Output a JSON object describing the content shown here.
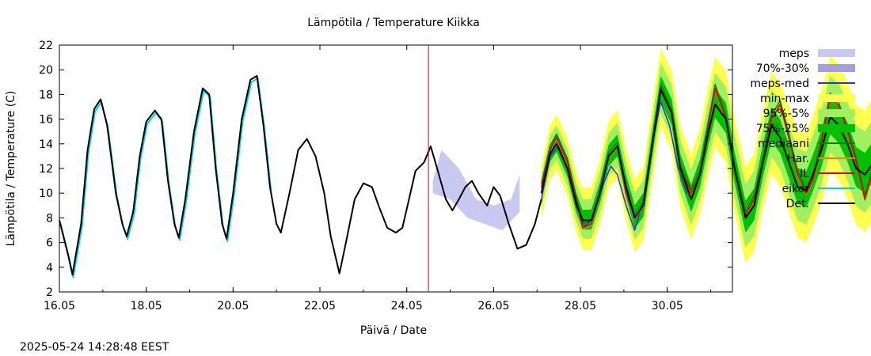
{
  "chart_data": {
    "type": "line",
    "title": "Lämpötila / Temperature   Kiikka",
    "xlabel": "Päivä / Date",
    "ylabel": "Lämpötila / Temperature (C)",
    "footer": "2025-05-24 14:28:48 EEST",
    "xlim": [
      "2025-05-16 00:00",
      "2025-05-31 12:00"
    ],
    "ylim": [
      2,
      22
    ],
    "yticks": [
      2,
      4,
      6,
      8,
      10,
      12,
      14,
      16,
      18,
      20,
      22
    ],
    "xticks": [
      "16.05",
      "18.05",
      "20.05",
      "22.05",
      "24.05",
      "26.05",
      "28.05",
      "30.05"
    ],
    "forecast_start": "2025-05-24 12:00",
    "legend_position": "right",
    "legend": [
      {
        "label": "meps",
        "color": "#c8c8f0",
        "style": "box"
      },
      {
        "label": "70%-30%",
        "color": "#a0a0dc",
        "style": "box"
      },
      {
        "label": "meps-med",
        "color": "#3030d0",
        "style": "line"
      },
      {
        "label": "min-max",
        "color": "#ffff50",
        "style": "box"
      },
      {
        "label": "95%-5%",
        "color": "#a0f060",
        "style": "box"
      },
      {
        "label": "75%-25%",
        "color": "#00c000",
        "style": "box"
      },
      {
        "label": "mediaani",
        "color": "#008000",
        "style": "line"
      },
      {
        "label": "Har.",
        "color": "#ff8000",
        "style": "line"
      },
      {
        "label": "IL",
        "color": "#e00000",
        "style": "line"
      },
      {
        "label": "eikor",
        "color": "#00d0e0",
        "style": "line"
      },
      {
        "label": "Det.",
        "color": "#000000",
        "style": "line"
      }
    ],
    "observed": [
      [
        16.0,
        7.8
      ],
      [
        16.2,
        5.0
      ],
      [
        16.3,
        3.4
      ],
      [
        16.5,
        7.5
      ],
      [
        16.65,
        13.5
      ],
      [
        16.8,
        16.8
      ],
      [
        16.95,
        17.6
      ],
      [
        17.1,
        15.5
      ],
      [
        17.3,
        10.0
      ],
      [
        17.45,
        7.5
      ],
      [
        17.55,
        6.5
      ],
      [
        17.7,
        8.5
      ],
      [
        17.85,
        13.0
      ],
      [
        18.0,
        15.8
      ],
      [
        18.2,
        16.7
      ],
      [
        18.35,
        16.0
      ],
      [
        18.5,
        11.0
      ],
      [
        18.65,
        7.5
      ],
      [
        18.75,
        6.4
      ],
      [
        18.9,
        9.5
      ],
      [
        19.1,
        15.0
      ],
      [
        19.3,
        18.5
      ],
      [
        19.45,
        18.0
      ],
      [
        19.6,
        12.0
      ],
      [
        19.75,
        7.5
      ],
      [
        19.85,
        6.3
      ],
      [
        20.0,
        10.0
      ],
      [
        20.2,
        16.0
      ],
      [
        20.4,
        19.2
      ],
      [
        20.55,
        19.5
      ],
      [
        20.7,
        15.5
      ],
      [
        20.85,
        10.5
      ],
      [
        21.0,
        7.5
      ],
      [
        21.1,
        6.8
      ],
      [
        21.3,
        10.0
      ],
      [
        21.5,
        13.5
      ],
      [
        21.7,
        14.4
      ],
      [
        21.9,
        13.0
      ],
      [
        22.1,
        10.0
      ],
      [
        22.25,
        6.5
      ],
      [
        22.45,
        3.5
      ],
      [
        22.6,
        6.0
      ],
      [
        22.8,
        9.5
      ],
      [
        23.0,
        10.8
      ],
      [
        23.2,
        10.5
      ],
      [
        23.35,
        9.0
      ],
      [
        23.55,
        7.2
      ],
      [
        23.75,
        6.8
      ],
      [
        23.9,
        7.2
      ],
      [
        24.05,
        9.5
      ],
      [
        24.2,
        11.8
      ],
      [
        24.4,
        12.5
      ],
      [
        24.55,
        13.8
      ],
      [
        24.7,
        12.0
      ],
      [
        24.9,
        9.5
      ],
      [
        25.05,
        8.6
      ],
      [
        25.2,
        9.5
      ],
      [
        25.35,
        10.5
      ],
      [
        25.5,
        11.0
      ],
      [
        25.65,
        10.0
      ],
      [
        25.85,
        9.0
      ],
      [
        26.0,
        10.5
      ],
      [
        26.15,
        9.8
      ],
      [
        26.35,
        7.5
      ],
      [
        26.55,
        5.5
      ],
      [
        26.75,
        5.8
      ],
      [
        26.95,
        7.5
      ],
      [
        27.1,
        9.5
      ]
    ],
    "x_axis_note": "x values are day numbers in May 2025 (16 = 16.05 00:00)",
    "series": [
      {
        "name": "meps-med",
        "values": [
          [
            27.1,
            9.5
          ],
          [
            27.3,
            13.0
          ],
          [
            27.5,
            13.8
          ],
          [
            27.7,
            12.0
          ],
          [
            27.9,
            9.0
          ],
          [
            28.1,
            7.3
          ],
          [
            28.3,
            8.0
          ],
          [
            28.5,
            10.5
          ],
          [
            28.7,
            12.2
          ],
          [
            28.85,
            11.5
          ],
          [
            29.05,
            9.0
          ],
          [
            29.25,
            7.0
          ],
          [
            29.45,
            9.5
          ],
          [
            29.65,
            14.0
          ],
          [
            29.85,
            17.4
          ],
          [
            30.05,
            15.5
          ],
          [
            30.25,
            12.0
          ],
          [
            30.45,
            10.0
          ]
        ]
      },
      {
        "name": "IL",
        "values": [
          [
            27.1,
            10.5
          ],
          [
            27.3,
            13.5
          ],
          [
            27.45,
            14.5
          ],
          [
            27.7,
            12.5
          ],
          [
            27.9,
            9.5
          ],
          [
            28.05,
            7.2
          ],
          [
            28.25,
            7.5
          ],
          [
            28.45,
            10.0
          ],
          [
            28.65,
            13.0
          ],
          [
            28.85,
            13.8
          ],
          [
            29.05,
            10.0
          ],
          [
            29.25,
            8.0
          ],
          [
            29.45,
            9.0
          ],
          [
            29.7,
            15.0
          ],
          [
            29.85,
            18.5
          ],
          [
            30.1,
            16.5
          ],
          [
            30.3,
            12.0
          ],
          [
            30.55,
            10.0
          ],
          [
            30.75,
            11.5
          ],
          [
            30.95,
            15.5
          ],
          [
            31.1,
            18.5
          ],
          [
            31.35,
            16.0
          ],
          [
            31.55,
            12.0
          ],
          [
            31.8,
            8.2
          ],
          [
            32.0,
            9.5
          ],
          [
            32.2,
            12.5
          ],
          [
            32.4,
            16.0
          ],
          [
            32.6,
            17.2
          ],
          [
            32.8,
            14.5
          ],
          [
            33.0,
            11.5
          ],
          [
            33.2,
            10.0
          ],
          [
            33.35,
            11.0
          ],
          [
            33.55,
            14.0
          ],
          [
            33.75,
            17.8
          ],
          [
            33.95,
            17.0
          ],
          [
            34.15,
            15.0
          ],
          [
            34.35,
            12.5
          ],
          [
            34.55,
            9.5
          ],
          [
            34.75,
            12.0
          ],
          [
            34.95,
            14.5
          ],
          [
            35.15,
            18.3
          ],
          [
            35.35,
            17.0
          ],
          [
            35.55,
            14.0
          ]
        ]
      },
      {
        "name": "Det.",
        "values": [
          [
            27.1,
            10.0
          ],
          [
            27.3,
            13.2
          ],
          [
            27.45,
            14.0
          ],
          [
            27.7,
            12.0
          ],
          [
            27.9,
            9.2
          ],
          [
            28.05,
            7.8
          ],
          [
            28.25,
            7.8
          ],
          [
            28.45,
            10.0
          ],
          [
            28.65,
            13.0
          ],
          [
            28.85,
            13.8
          ],
          [
            29.05,
            10.5
          ],
          [
            29.25,
            8.0
          ],
          [
            29.45,
            9.0
          ],
          [
            29.7,
            15.0
          ],
          [
            29.85,
            18.4
          ],
          [
            30.1,
            16.5
          ],
          [
            30.3,
            12.0
          ],
          [
            30.55,
            9.5
          ],
          [
            30.75,
            11.5
          ],
          [
            30.95,
            15.0
          ],
          [
            31.1,
            17.2
          ],
          [
            31.35,
            16.0
          ],
          [
            31.55,
            12.0
          ],
          [
            31.8,
            8.0
          ],
          [
            32.0,
            9.0
          ],
          [
            32.2,
            12.5
          ],
          [
            32.4,
            15.5
          ],
          [
            32.6,
            14.5
          ],
          [
            32.8,
            12.5
          ],
          [
            33.0,
            10.5
          ],
          [
            33.2,
            10.2
          ],
          [
            33.35,
            11.5
          ],
          [
            33.55,
            13.5
          ],
          [
            33.75,
            16.2
          ],
          [
            33.95,
            15.5
          ],
          [
            34.15,
            14.0
          ],
          [
            34.35,
            12.0
          ],
          [
            34.55,
            11.5
          ],
          [
            34.75,
            12.5
          ],
          [
            34.95,
            15.0
          ],
          [
            35.15,
            16.6
          ],
          [
            35.35,
            15.0
          ],
          [
            35.55,
            12.5
          ]
        ]
      }
    ]
  }
}
